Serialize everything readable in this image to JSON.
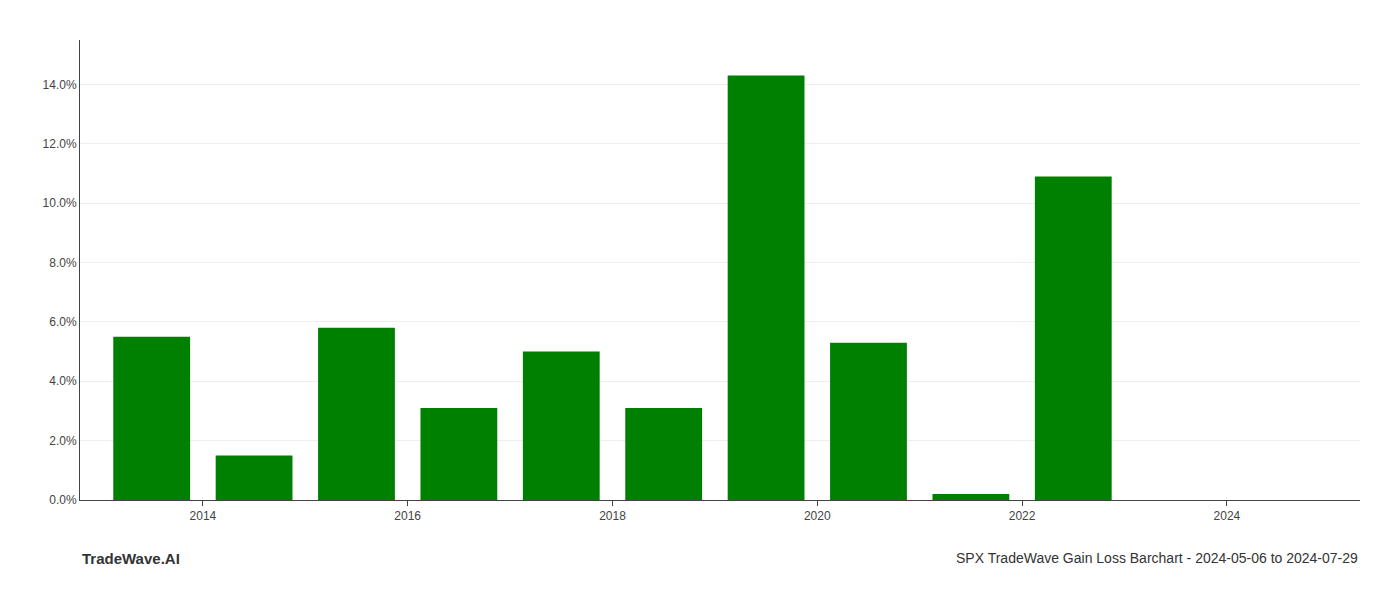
{
  "chart_data": {
    "type": "bar",
    "title": "SPX TradeWave Gain Loss Barchart - 2024-05-06 to 2024-07-29",
    "annotations": [
      "TradeWave.AI"
    ],
    "x": [
      2013,
      2014,
      2015,
      2016,
      2017,
      2018,
      2019,
      2020,
      2021,
      2022,
      2023,
      2024
    ],
    "values": [
      0.055,
      0.015,
      0.058,
      0.031,
      0.05,
      0.031,
      0.143,
      0.053,
      0.002,
      0.109,
      0.0,
      0.0
    ],
    "color": "#008000",
    "xlim": [
      2012.3,
      2024.8
    ],
    "xticks": [
      {
        "value": 2013.5,
        "label": "2014"
      },
      {
        "value": 2015.5,
        "label": "2016"
      },
      {
        "value": 2017.5,
        "label": "2018"
      },
      {
        "value": 2019.5,
        "label": "2020"
      },
      {
        "value": 2021.5,
        "label": "2022"
      },
      {
        "value": 2023.5,
        "label": "2024"
      }
    ],
    "ylim": [
      0,
      0.155
    ],
    "yticks": [
      {
        "value": 0.0,
        "label": "0.0%"
      },
      {
        "value": 0.02,
        "label": "2.0%"
      },
      {
        "value": 0.04,
        "label": "4.0%"
      },
      {
        "value": 0.06,
        "label": "6.0%"
      },
      {
        "value": 0.08,
        "label": "8.0%"
      },
      {
        "value": 0.1,
        "label": "10.0%"
      },
      {
        "value": 0.12,
        "label": "12.0%"
      },
      {
        "value": 0.14,
        "label": "14.0%"
      }
    ],
    "grid": true
  }
}
